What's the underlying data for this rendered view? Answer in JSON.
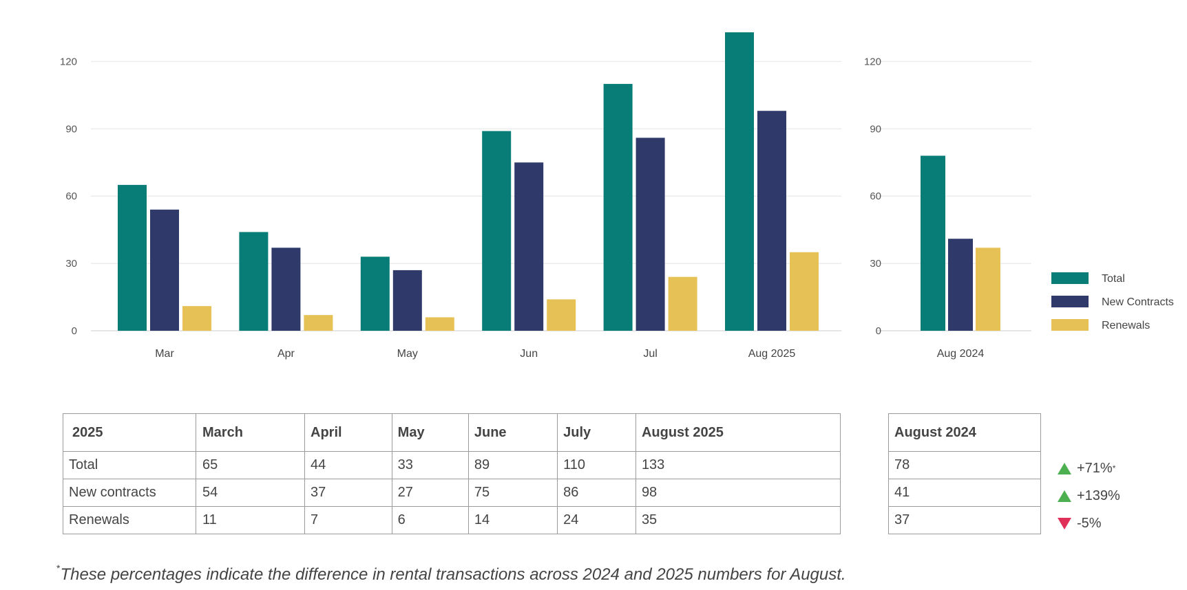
{
  "chart_data": [
    {
      "type": "bar",
      "categories": [
        "Mar",
        "Apr",
        "May",
        "Jun",
        "Jul",
        "Aug 2025"
      ],
      "series": [
        {
          "name": "Total",
          "values": [
            65,
            44,
            33,
            89,
            110,
            133
          ],
          "color": "#087d77"
        },
        {
          "name": "New Contracts",
          "values": [
            54,
            37,
            27,
            75,
            86,
            98
          ],
          "color": "#2f3a6b"
        },
        {
          "name": "Renewals",
          "values": [
            11,
            7,
            6,
            14,
            24,
            35
          ],
          "color": "#e6c256"
        }
      ],
      "ylim": [
        0,
        133
      ],
      "yticks": [
        0,
        30,
        60,
        90,
        120
      ],
      "grid": true
    },
    {
      "type": "bar",
      "categories": [
        "Aug 2024"
      ],
      "series": [
        {
          "name": "Total",
          "values": [
            78
          ],
          "color": "#087d77"
        },
        {
          "name": "New Contracts",
          "values": [
            41
          ],
          "color": "#2f3a6b"
        },
        {
          "name": "Renewals",
          "values": [
            37
          ],
          "color": "#e6c256"
        }
      ],
      "ylim": [
        0,
        133
      ],
      "yticks": [
        0,
        30,
        60,
        90,
        120
      ],
      "grid": true,
      "legend": "right"
    }
  ],
  "legend": [
    {
      "label": "Total",
      "color": "#087d77"
    },
    {
      "label": "New Contracts",
      "color": "#2f3a6b"
    },
    {
      "label": "Renewals",
      "color": "#e6c256"
    }
  ],
  "table": {
    "headers": [
      "2025",
      "March",
      "April",
      "May",
      "June",
      "July",
      "August 2025"
    ],
    "rows": [
      [
        "Total",
        "65",
        "44",
        "33",
        "89",
        "110",
        "133"
      ],
      [
        "New contracts",
        "54",
        "37",
        "27",
        "75",
        "86",
        "98"
      ],
      [
        "Renewals",
        "11",
        "7",
        "6",
        "14",
        "24",
        "35"
      ]
    ]
  },
  "side_table": {
    "header": "August 2024",
    "rows": [
      "78",
      "41",
      "37"
    ]
  },
  "changes": [
    {
      "text": "+71%",
      "direction": "up",
      "mark": "*"
    },
    {
      "text": "+139%",
      "direction": "up",
      "mark": ""
    },
    {
      "text": "-5%",
      "direction": "down",
      "mark": ""
    }
  ],
  "footnote": {
    "mark": "*",
    "text": "These percentages indicate the difference in rental transactions across 2024 and 2025 numbers for August."
  }
}
